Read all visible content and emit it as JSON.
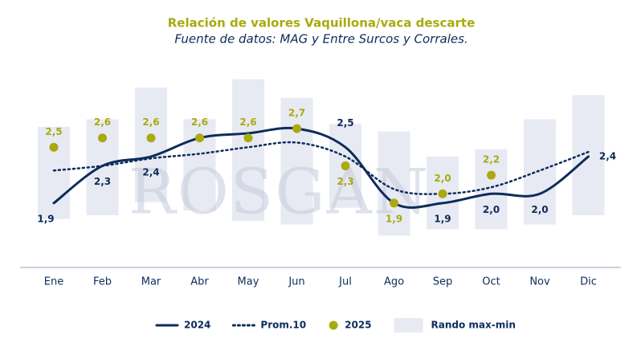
{
  "chart_data": {
    "type": "line",
    "title": "Relación de valores Vaquillona/vaca descarte",
    "subtitle": "Fuente de datos: MAG y Entre Surcos y Corrales.",
    "watermark": "ROSGAN",
    "categories": [
      "Ene",
      "Feb",
      "Mar",
      "Abr",
      "May",
      "Jun",
      "Jul",
      "Ago",
      "Sep",
      "Oct",
      "Nov",
      "Dic"
    ],
    "ylim": [
      1.2,
      3.4
    ],
    "range": {
      "name": "Rando max-min",
      "color": "#e8eaf3",
      "max": [
        2.72,
        2.8,
        3.14,
        2.8,
        3.23,
        3.03,
        2.75,
        2.67,
        2.4,
        2.48,
        2.8,
        3.06
      ],
      "min": [
        1.73,
        1.77,
        1.91,
        1.82,
        1.71,
        1.67,
        1.85,
        1.55,
        1.62,
        1.62,
        1.67,
        1.77
      ]
    },
    "series": [
      {
        "name": "2024",
        "color": "#0d2c5a",
        "style": "solid",
        "values": [
          1.9,
          2.3,
          2.4,
          2.6,
          2.65,
          2.7,
          2.5,
          1.9,
          1.9,
          2.0,
          2.0,
          2.4
        ],
        "value_labels": [
          "1,9",
          "2,3",
          "2,4",
          null,
          null,
          null,
          "2,5",
          null,
          "1,9",
          "2,0",
          "2,0",
          "2,4"
        ]
      },
      {
        "name": "Prom.10",
        "color": "#0d2c5a",
        "style": "dotted",
        "values": [
          2.25,
          2.3,
          2.38,
          2.43,
          2.5,
          2.55,
          2.4,
          2.05,
          2.0,
          2.07,
          2.25,
          2.45
        ]
      },
      {
        "name": "2025",
        "color": "#a8aa10",
        "style": "marker",
        "values": [
          2.5,
          2.6,
          2.6,
          2.6,
          2.6,
          2.7,
          2.3,
          1.9,
          2.0,
          2.2,
          null,
          null
        ],
        "value_labels": [
          "2,5",
          "2,6",
          "2,6",
          "2,6",
          "2,6",
          "2,7",
          "2,3",
          "1,9",
          "2,0",
          "2,2",
          null,
          null
        ]
      }
    ]
  }
}
